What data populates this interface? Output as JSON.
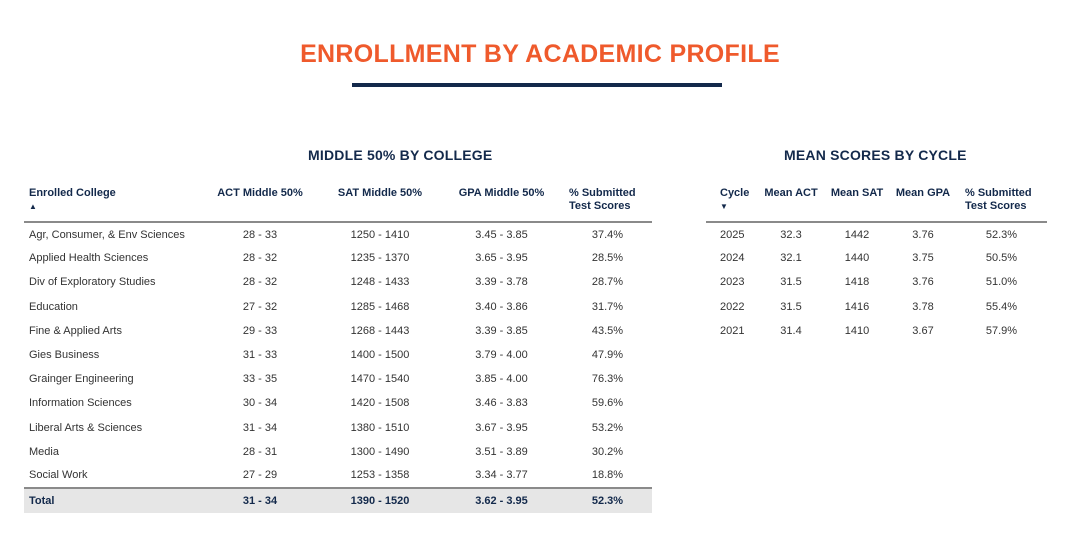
{
  "page": {
    "title": "ENROLLMENT BY ACADEMIC PROFILE"
  },
  "colors": {
    "accent": "#ef5a2c",
    "navy": "#13294b",
    "total_bg": "#e6e6e6"
  },
  "college_section": {
    "title": "MIDDLE 50% BY COLLEGE",
    "headers": [
      "Enrolled College",
      "ACT Middle 50%",
      "SAT Middle 50%",
      "GPA Middle 50%",
      "% Submitted\nTest Scores"
    ],
    "sort_icon": "sort-ascending-icon",
    "rows": [
      [
        "Agr, Consumer, & Env Sciences",
        "28 - 33",
        "1250 - 1410",
        "3.45 - 3.85",
        "37.4%"
      ],
      [
        "Applied Health Sciences",
        "28 - 32",
        "1235 - 1370",
        "3.65 - 3.95",
        "28.5%"
      ],
      [
        "Div of Exploratory Studies",
        "28 - 32",
        "1248 - 1433",
        "3.39 - 3.78",
        "28.7%"
      ],
      [
        "Education",
        "27 - 32",
        "1285 - 1468",
        "3.40 - 3.86",
        "31.7%"
      ],
      [
        "Fine & Applied Arts",
        "29 - 33",
        "1268 - 1443",
        "3.39 - 3.85",
        "43.5%"
      ],
      [
        "Gies Business",
        "31 - 33",
        "1400 - 1500",
        "3.79 - 4.00",
        "47.9%"
      ],
      [
        "Grainger Engineering",
        "33 - 35",
        "1470 - 1540",
        "3.85 - 4.00",
        "76.3%"
      ],
      [
        "Information Sciences",
        "30 - 34",
        "1420 - 1508",
        "3.46 - 3.83",
        "59.6%"
      ],
      [
        "Liberal Arts & Sciences",
        "31 - 34",
        "1380 - 1510",
        "3.67 - 3.95",
        "53.2%"
      ],
      [
        "Media",
        "28 - 31",
        "1300 - 1490",
        "3.51 - 3.89",
        "30.2%"
      ],
      [
        "Social Work",
        "27 - 29",
        "1253 - 1358",
        "3.34 - 3.77",
        "18.8%"
      ]
    ],
    "total": [
      "Total",
      "31 - 34",
      "1390 - 1520",
      "3.62 - 3.95",
      "52.3%"
    ]
  },
  "cycle_section": {
    "title": "MEAN SCORES BY CYCLE",
    "headers": [
      "Cycle",
      "Mean ACT",
      "Mean SAT",
      "Mean GPA",
      "% Submitted\nTest Scores"
    ],
    "sort_icon": "sort-descending-icon",
    "rows": [
      [
        "2025",
        "32.3",
        "1442",
        "3.76",
        "52.3%"
      ],
      [
        "2024",
        "32.1",
        "1440",
        "3.75",
        "50.5%"
      ],
      [
        "2023",
        "31.5",
        "1418",
        "3.76",
        "51.0%"
      ],
      [
        "2022",
        "31.5",
        "1416",
        "3.78",
        "55.4%"
      ],
      [
        "2021",
        "31.4",
        "1410",
        "3.67",
        "57.9%"
      ]
    ]
  }
}
